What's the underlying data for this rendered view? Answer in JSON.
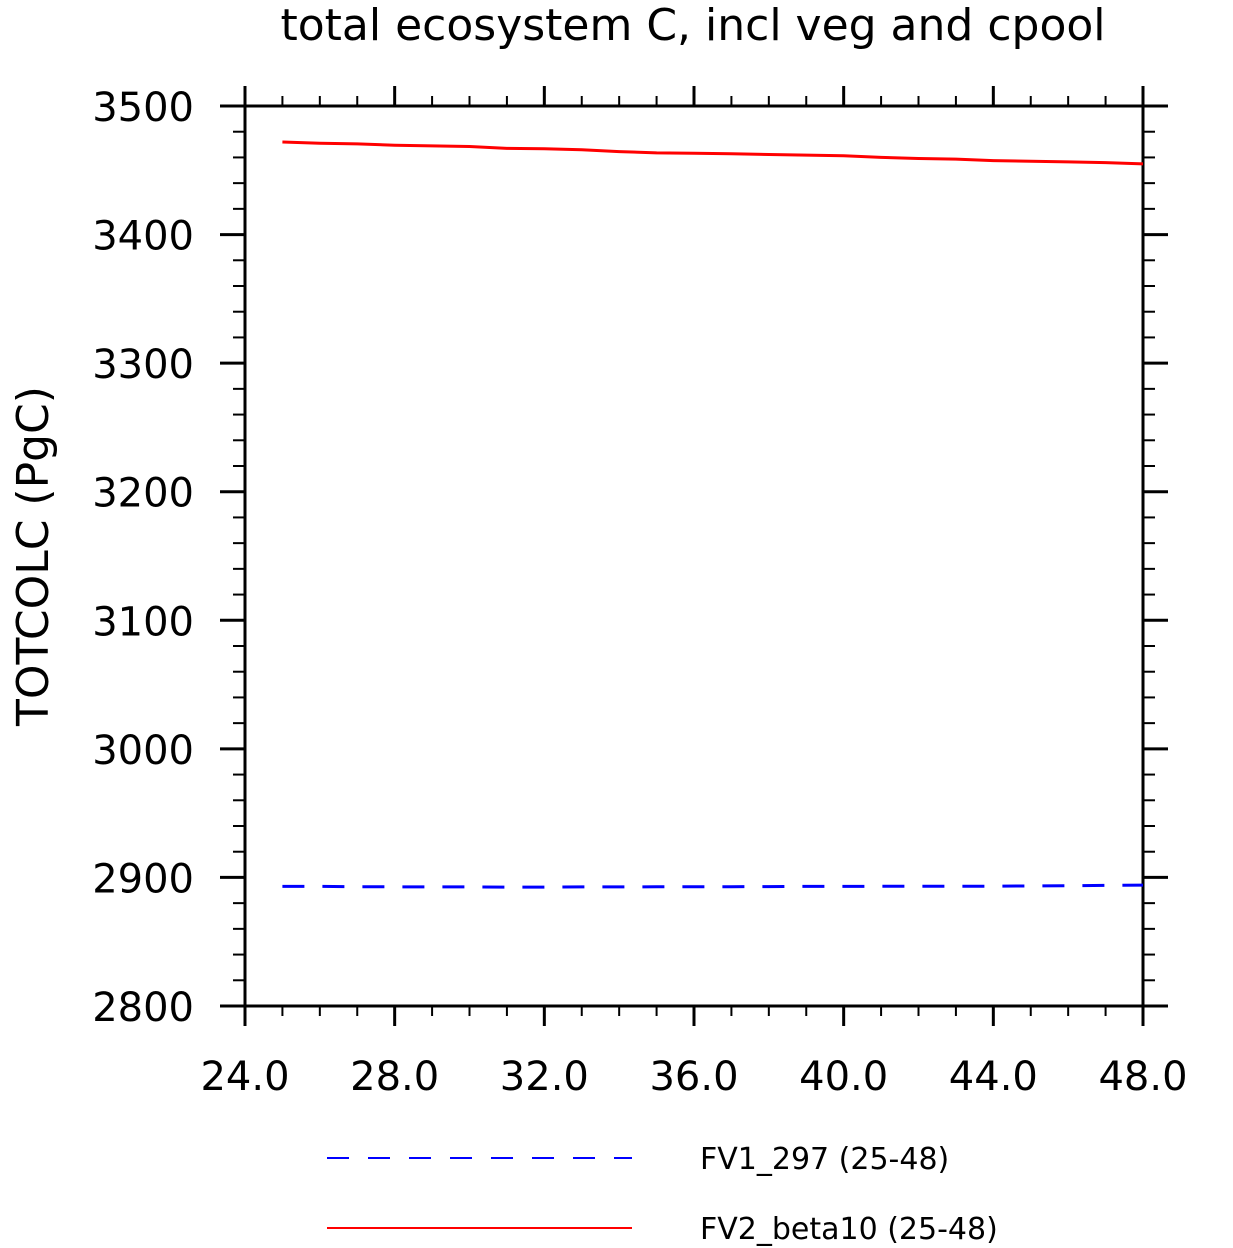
{
  "chart_data": {
    "type": "line",
    "title": "total ecosystem C, incl veg and cpool",
    "xlabel": "",
    "ylabel": "TOTCOLC  (PgC)",
    "xlim": [
      24,
      48
    ],
    "ylim": [
      2800,
      3500
    ],
    "x_ticks": [
      "24.0",
      "28.0",
      "32.0",
      "36.0",
      "40.0",
      "44.0",
      "48.0"
    ],
    "y_ticks": [
      "2800",
      "2900",
      "3000",
      "3100",
      "3200",
      "3300",
      "3400",
      "3500"
    ],
    "x": [
      25,
      26,
      27,
      28,
      29,
      30,
      31,
      32,
      33,
      34,
      35,
      36,
      37,
      38,
      39,
      40,
      41,
      42,
      43,
      44,
      45,
      46,
      47,
      48
    ],
    "series": [
      {
        "name": "FV1_297 (25-48)",
        "color": "#0000ff",
        "dash": "dashed",
        "values": [
          2893,
          2893,
          2892.8,
          2892.7,
          2892.6,
          2892.6,
          2892.5,
          2892.5,
          2892.6,
          2892.6,
          2892.7,
          2892.8,
          2892.8,
          2892.9,
          2893,
          2893,
          2893.1,
          2893.1,
          2893.2,
          2893.2,
          2893.4,
          2893.6,
          2893.8,
          2894
        ]
      },
      {
        "name": "FV2_beta10 (25-48)",
        "color": "#ff0000",
        "dash": "solid",
        "values": [
          3472,
          3471,
          3470.5,
          3469.5,
          3469,
          3468.5,
          3467,
          3466.8,
          3466,
          3464.5,
          3463.5,
          3463.2,
          3462.8,
          3462.3,
          3461.8,
          3461.3,
          3460,
          3459.2,
          3458.7,
          3457.5,
          3457,
          3456.5,
          3456,
          3455
        ]
      }
    ],
    "grid": false,
    "legend_position": "bottom"
  }
}
